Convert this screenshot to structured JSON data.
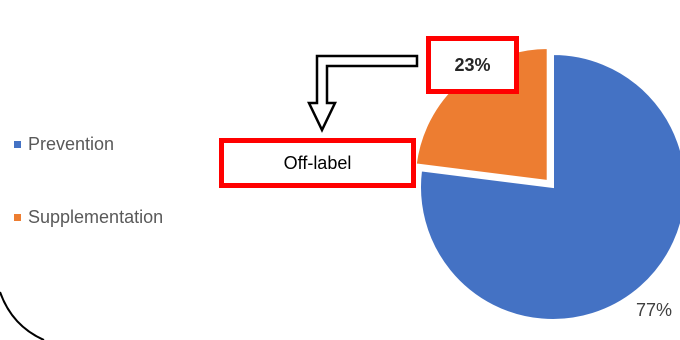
{
  "chart_data": {
    "type": "pie",
    "categories": [
      "Prevention",
      "Supplementation"
    ],
    "values": [
      77,
      23
    ],
    "labels": [
      "77%",
      "23%"
    ],
    "colors": [
      "#4472c4",
      "#ed7d31"
    ],
    "exploded": "Supplementation",
    "legend": "left"
  },
  "annotation": {
    "text": "Off-label",
    "border_color": "#ff0000",
    "arrow": "points from the 23% label toward the Off-label box"
  }
}
